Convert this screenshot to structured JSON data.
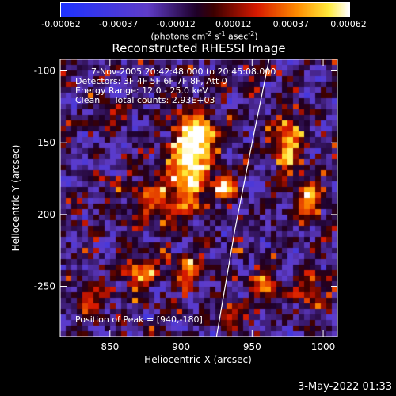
{
  "chart_data": {
    "type": "heatmap",
    "title": "Reconstructed RHESSI Image",
    "xlabel": "Heliocentric X (arcsec)",
    "ylabel": "Heliocentric Y (arcsec)",
    "xlim": [
      815,
      1010
    ],
    "ylim": [
      -285,
      -92
    ],
    "x_ticks": [
      850,
      900,
      950,
      1000
    ],
    "y_ticks": [
      -100,
      -150,
      -200,
      -250
    ],
    "colorbar": {
      "ticks": [
        "-0.00062",
        "-0.00037",
        "-0.00012",
        "0.00012",
        "0.00037",
        "0.00062"
      ],
      "range": [
        -0.00062,
        0.00062
      ],
      "unit_parts": [
        "(photons cm",
        "-2",
        " s",
        "-1",
        " asec",
        "-2",
        ")"
      ]
    },
    "info_lines": [
      "7-Nov-2005 20:42:48.000 to 20:45:08.000",
      "Detectors: 3F 4F 5F 6F 7F 8F, Att 0",
      "Energy Range: 12.0 - 25.0 keV",
      "Clean     Total counts: 2.93E+03"
    ],
    "peak_text": "Position of Peak = [940,-180]",
    "timestamp": "3-May-2022 01:33",
    "limb_curve": [
      [
        962,
        -92
      ],
      [
        950,
        -150
      ],
      [
        938,
        -210
      ],
      [
        925,
        -285
      ]
    ],
    "emission_sources": [
      {
        "x": 905,
        "y": -165,
        "sx": 9,
        "sy": 22,
        "amp": 1.0
      },
      {
        "x": 930,
        "y": -180,
        "sx": 5,
        "sy": 6,
        "amp": 1.0
      },
      {
        "x": 915,
        "y": -145,
        "sx": 7,
        "sy": 10,
        "amp": 0.8
      },
      {
        "x": 880,
        "y": -190,
        "sx": 12,
        "sy": 12,
        "amp": 0.5
      },
      {
        "x": 975,
        "y": -150,
        "sx": 6,
        "sy": 15,
        "amp": 0.8
      },
      {
        "x": 990,
        "y": -190,
        "sx": 6,
        "sy": 10,
        "amp": 0.7
      },
      {
        "x": 905,
        "y": -240,
        "sx": 8,
        "sy": 6,
        "amp": 0.6
      },
      {
        "x": 870,
        "y": -240,
        "sx": 8,
        "sy": 8,
        "amp": 0.6
      },
      {
        "x": 960,
        "y": -250,
        "sx": 6,
        "sy": 8,
        "amp": 0.6
      },
      {
        "x": 935,
        "y": -270,
        "sx": 7,
        "sy": 6,
        "amp": 0.5
      },
      {
        "x": 835,
        "y": -260,
        "sx": 8,
        "sy": 8,
        "amp": 0.5
      },
      {
        "x": 990,
        "y": -250,
        "sx": 8,
        "sy": 8,
        "amp": 0.5
      },
      {
        "x": 850,
        "y": -130,
        "sx": 6,
        "sy": 8,
        "amp": 0.4
      }
    ]
  }
}
